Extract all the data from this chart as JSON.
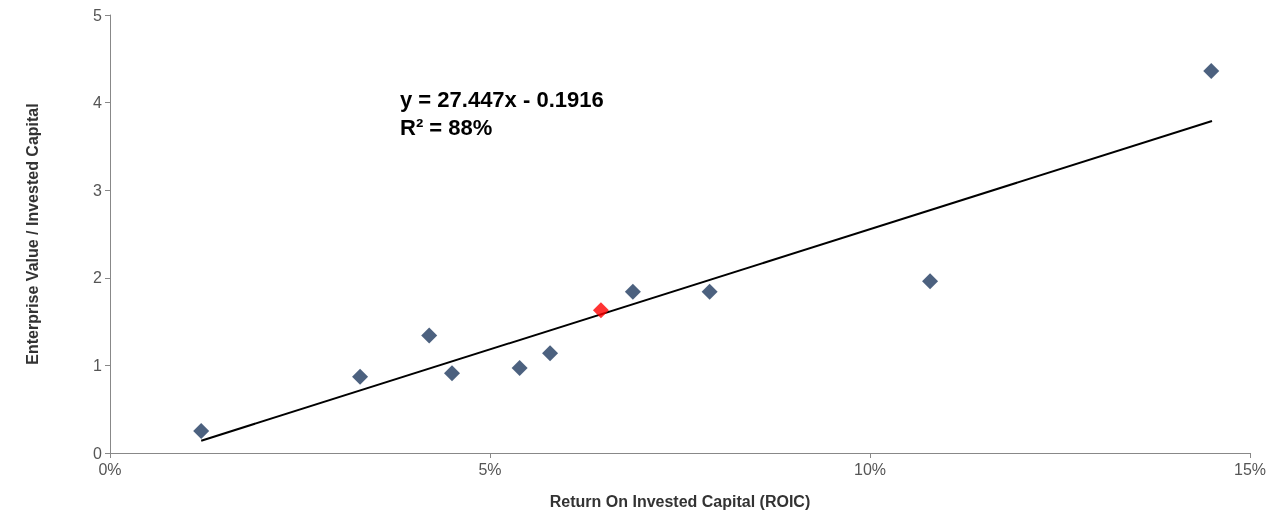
{
  "chart_data": {
    "type": "scatter",
    "xlabel": "Return On Invested Capital (ROIC)",
    "ylabel": "Enterprise Value / Invested Capital",
    "xlim": [
      0,
      15
    ],
    "xticks": [
      {
        "value": 0,
        "label": "0%"
      },
      {
        "value": 5,
        "label": "5%"
      },
      {
        "value": 10,
        "label": "10%"
      },
      {
        "value": 15,
        "label": "15%"
      }
    ],
    "ylim": [
      0,
      5
    ],
    "yticks": [
      0,
      1,
      2,
      3,
      4,
      5
    ],
    "grid": false,
    "annotations": [
      "y = 27.447x - 0.1916",
      "R² = 88%"
    ],
    "series": [
      {
        "marker": "diamond",
        "color": "#1f3a5f",
        "x": [
          1.2,
          3.29,
          4.2,
          4.5,
          5.39,
          5.79,
          6.88,
          7.89,
          10.79,
          14.49
        ],
        "values": [
          0.25,
          0.87,
          1.34,
          0.91,
          0.97,
          1.14,
          1.84,
          1.84,
          1.96,
          4.36
        ]
      },
      {
        "marker": "diamond",
        "color": "#ff0000",
        "x": [
          6.46
        ],
        "values": [
          1.63
        ]
      },
      {
        "type": "line",
        "color": "#000000",
        "line_style": "solid",
        "x": [
          1.2,
          14.5
        ],
        "values": [
          0.14,
          3.79
        ]
      }
    ]
  }
}
